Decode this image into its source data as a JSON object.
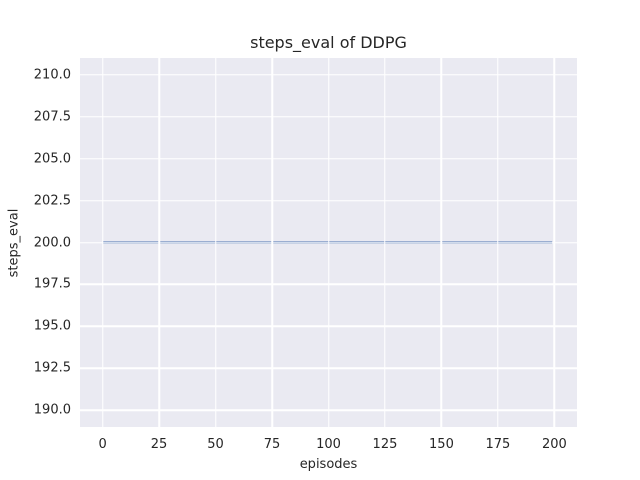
{
  "chart_data": {
    "type": "line",
    "title": "steps_eval of DDPG",
    "xlabel": "episodes",
    "ylabel": "steps_eval",
    "xlim": [
      -10,
      210
    ],
    "ylim": [
      189,
      211
    ],
    "grid": true,
    "legend": false,
    "xticks": {
      "values": [
        0,
        25,
        50,
        75,
        100,
        125,
        150,
        175,
        200
      ],
      "labels": [
        "0",
        "25",
        "50",
        "75",
        "100",
        "125",
        "150",
        "175",
        "200"
      ]
    },
    "yticks": {
      "values": [
        190.0,
        192.5,
        195.0,
        197.5,
        200.0,
        202.5,
        205.0,
        207.5,
        210.0
      ],
      "labels": [
        "190.0",
        "192.5",
        "195.0",
        "197.5",
        "200.0",
        "202.5",
        "205.0",
        "207.5",
        "210.0"
      ]
    },
    "series": [
      {
        "name": "DDPG",
        "color": "#4C72B0",
        "line_width": 2,
        "points": [
          [
            0,
            200.0
          ],
          [
            199,
            200.0
          ]
        ]
      }
    ],
    "colors": {
      "figure_background": "#FFFFFF",
      "axes_background": "#EAEAF2",
      "grid": "#FFFFFF",
      "text": "#262626",
      "line": "#4C72B0"
    }
  }
}
